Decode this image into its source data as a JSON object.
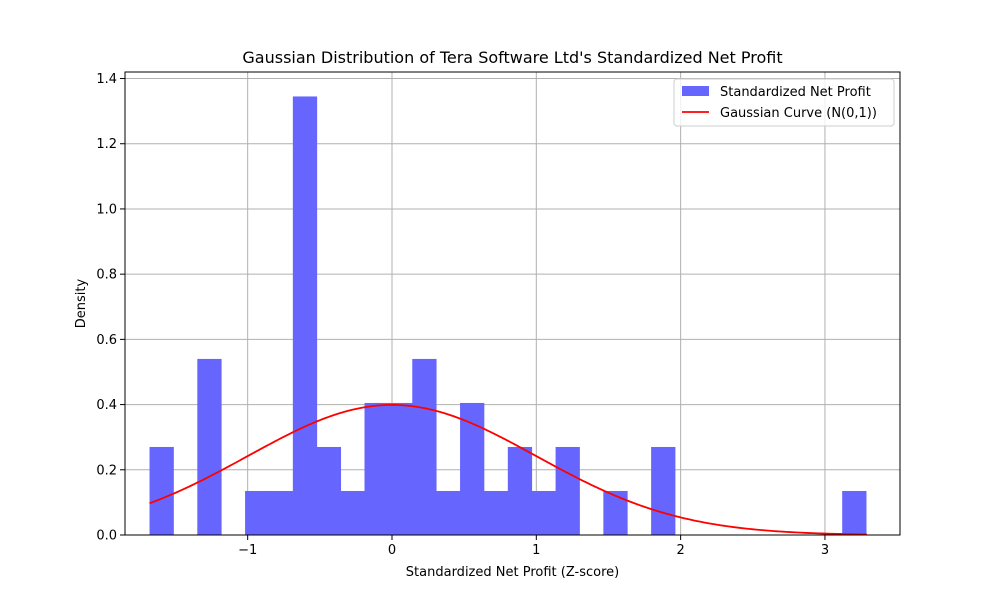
{
  "chart_data": {
    "type": "histogram",
    "title": "Gaussian Distribution of Tera Software Ltd's Standardized Net Profit",
    "xlabel": "Standardized Net Profit (Z-score)",
    "ylabel": "Density",
    "xlim": [
      -1.85,
      3.52
    ],
    "ylim": [
      0,
      1.42
    ],
    "x_ticks": [
      -1,
      0,
      1,
      2,
      3
    ],
    "x_tick_labels": [
      "−1",
      "0",
      "1",
      "2",
      "3"
    ],
    "y_ticks": [
      0.0,
      0.2,
      0.4,
      0.6,
      0.8,
      1.0,
      1.2,
      1.4
    ],
    "y_tick_labels": [
      "0.0",
      "0.2",
      "0.4",
      "0.6",
      "0.8",
      "1.0",
      "1.2",
      "1.4"
    ],
    "grid": true,
    "legend_position": "top-right",
    "series": [
      {
        "name": "Standardized Net Profit",
        "kind": "histogram",
        "color": "#6666ff",
        "bin_start": -1.68,
        "bin_width": 0.1655,
        "densities": [
          0.27,
          0.0,
          0.54,
          0.0,
          0.135,
          0.135,
          1.345,
          0.27,
          0.135,
          0.405,
          0.405,
          0.54,
          0.135,
          0.405,
          0.135,
          0.27,
          0.135,
          0.27,
          0.0,
          0.135,
          0.0,
          0.27,
          0.0,
          0.0,
          0.0,
          0.0,
          0.0,
          0.0,
          0.0,
          0.135
        ]
      },
      {
        "name": "Gaussian Curve (N(0,1))",
        "kind": "line",
        "color": "#ff0000",
        "function": "standard normal pdf",
        "x_range": [
          -1.68,
          3.29
        ]
      }
    ]
  }
}
